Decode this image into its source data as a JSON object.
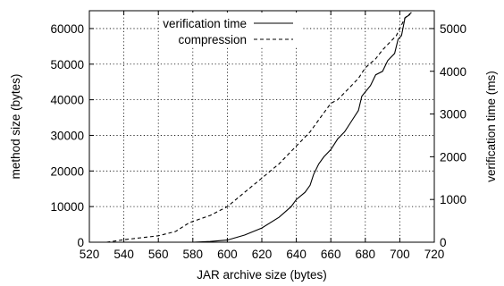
{
  "chart_data": {
    "type": "line",
    "xlabel": "JAR archive size (bytes)",
    "ylabel": "method size (bytes)",
    "y2label": "verification time (ms)",
    "xlim": [
      520,
      720
    ],
    "ylim": [
      0,
      65000
    ],
    "y2lim": [
      0,
      5417
    ],
    "xticks": [
      520,
      540,
      560,
      580,
      600,
      620,
      640,
      660,
      680,
      700,
      720
    ],
    "yticks": [
      0,
      10000,
      20000,
      30000,
      40000,
      50000,
      60000
    ],
    "y2ticks": [
      0,
      1000,
      2000,
      3000,
      4000,
      5000
    ],
    "grid": true,
    "legend_position": "top-center",
    "series": [
      {
        "name": "verification time",
        "axis": "right",
        "style": "solid",
        "points": [
          [
            580,
            0
          ],
          [
            590,
            17
          ],
          [
            600,
            50
          ],
          [
            610,
            167
          ],
          [
            620,
            333
          ],
          [
            630,
            583
          ],
          [
            637,
            833
          ],
          [
            640,
            1000
          ],
          [
            645,
            1167
          ],
          [
            648,
            1333
          ],
          [
            650,
            1583
          ],
          [
            653,
            1833
          ],
          [
            656,
            2000
          ],
          [
            660,
            2167
          ],
          [
            664,
            2417
          ],
          [
            668,
            2583
          ],
          [
            672,
            2833
          ],
          [
            676,
            3083
          ],
          [
            678,
            3417
          ],
          [
            683,
            3667
          ],
          [
            686,
            3917
          ],
          [
            690,
            4000
          ],
          [
            693,
            4250
          ],
          [
            697,
            4417
          ],
          [
            699,
            4750
          ],
          [
            701,
            4833
          ],
          [
            703,
            5250
          ],
          [
            706,
            5333
          ]
        ]
      },
      {
        "name": "compression",
        "axis": "left",
        "style": "dashed",
        "points": [
          [
            530,
            0
          ],
          [
            540,
            700
          ],
          [
            560,
            1800
          ],
          [
            570,
            3000
          ],
          [
            578,
            5500
          ],
          [
            590,
            7500
          ],
          [
            600,
            10000
          ],
          [
            610,
            14000
          ],
          [
            620,
            18000
          ],
          [
            630,
            22000
          ],
          [
            640,
            27000
          ],
          [
            648,
            31000
          ],
          [
            654,
            35000
          ],
          [
            660,
            39000
          ],
          [
            664,
            40000
          ],
          [
            670,
            43000
          ],
          [
            676,
            46000
          ],
          [
            680,
            49000
          ],
          [
            686,
            51500
          ],
          [
            690,
            54000
          ],
          [
            694,
            56000
          ],
          [
            698,
            58000
          ],
          [
            700,
            60000
          ],
          [
            703,
            63000
          ],
          [
            708,
            65000
          ]
        ]
      }
    ]
  }
}
